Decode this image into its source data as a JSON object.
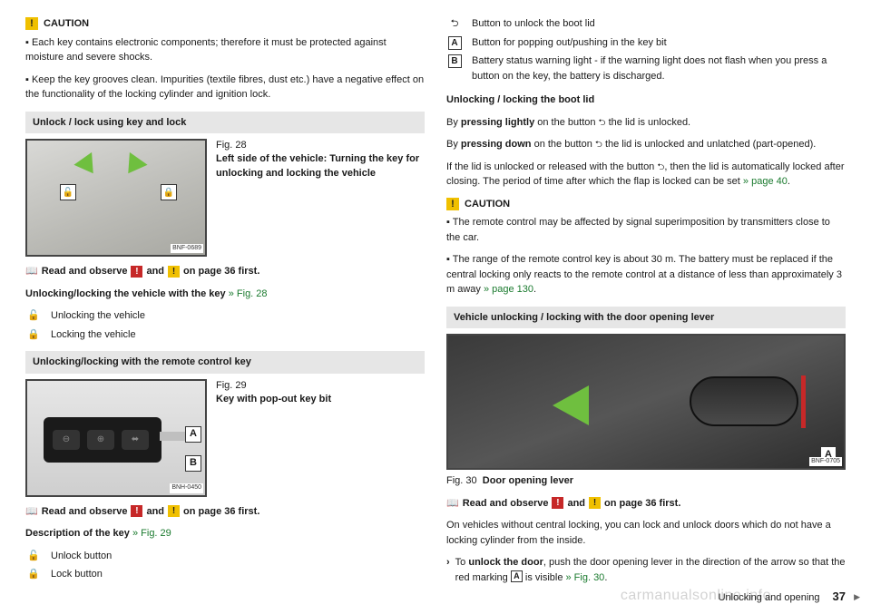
{
  "left": {
    "caution": {
      "label": "CAUTION",
      "p1": "Each key contains electronic components; therefore it must be protected against moisture and severe shocks.",
      "p2": "Keep the key grooves clean. Impurities (textile fibres, dust etc.) have a negative effect on the functionality of the locking cylinder and ignition lock."
    },
    "sec1": {
      "title": "Unlock / lock using key and lock",
      "fig": {
        "num": "Fig. 28",
        "caption": "Left side of the vehicle: Turning the key for unlocking and locking the vehicle",
        "code": "BNF-0689"
      },
      "read_a": "Read and observe",
      "read_b": "and",
      "read_c": "on page 36 first.",
      "subhead": "Unlocking/locking the vehicle with the key",
      "subhead_link": " » Fig. 28",
      "d1": "Unlocking the vehicle",
      "d2": "Locking the vehicle"
    },
    "sec2": {
      "title": "Unlocking/locking with the remote control key",
      "fig": {
        "num": "Fig. 29",
        "caption": "Key with pop-out key bit",
        "code": "BNH-0450"
      },
      "read_a": "Read and observe",
      "read_b": "and",
      "read_c": "on page 36 first.",
      "subhead": "Description of the key",
      "subhead_link": " » Fig. 29",
      "d1": "Unlock button",
      "d2": "Lock button"
    }
  },
  "right": {
    "defs": {
      "boot": "Button to unlock the boot lid",
      "A": "Button for popping out/pushing in the key bit",
      "B": "Battery status warning light - if the warning light does not flash when you press a button on the key, the battery is discharged."
    },
    "unlock": {
      "head": "Unlocking / locking the boot lid",
      "p1a": "By ",
      "p1b": "pressing lightly",
      "p1c": " on the button ",
      "p1d": " the lid is unlocked.",
      "p2a": "By ",
      "p2b": "pressing down",
      "p2c": " on the button ",
      "p2d": " the lid is unlocked and unlatched (part-opened).",
      "p3a": "If the lid is unlocked or released with the button ",
      "p3b": ", then the lid is automatically locked after closing. The period of time after which the flap is locked can be set ",
      "p3c": "» page 40",
      "p3d": "."
    },
    "caution": {
      "label": "CAUTION",
      "p1": "The remote control may be affected by signal superimposition by transmitters close to the car.",
      "p2a": "The range of the remote control key is about 30 m. The battery must be replaced if the central locking only reacts to the remote control at a distance of less than approximately 3 m away ",
      "p2b": "» page 130",
      "p2c": "."
    },
    "sec3": {
      "title": "Vehicle unlocking / locking with the door opening lever",
      "fig": {
        "num": "Fig. 30",
        "caption": "Door opening lever",
        "code": "BNF-0705"
      },
      "read_a": "Read and observe",
      "read_b": "and",
      "read_c": "on page 36 first.",
      "p1": "On vehicles without central locking, you can lock and unlock doors which do not have a locking cylinder from the inside.",
      "act_a": "To ",
      "act_b": "unlock the door",
      "act_c": ", push the door opening lever in the direction of the arrow so that the red marking ",
      "act_d": " is visible ",
      "act_e": "» Fig. 30",
      "act_f": "."
    }
  },
  "footer": {
    "section": "Unlocking and opening",
    "page": "37"
  },
  "watermark": "carmanualsonline.info",
  "labels": {
    "A": "A",
    "B": "B"
  }
}
